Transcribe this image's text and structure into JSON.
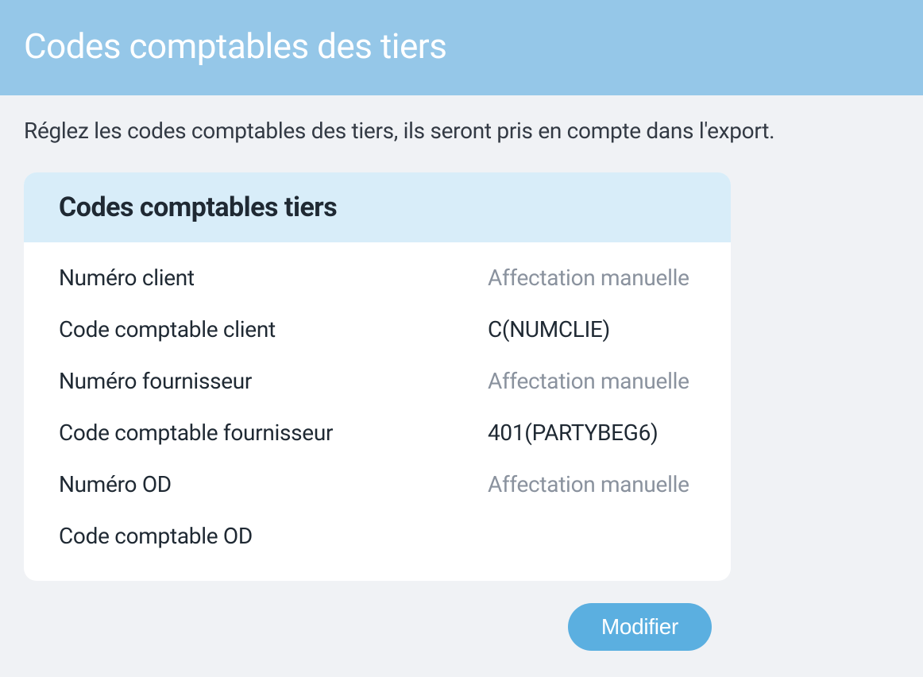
{
  "header": {
    "title": "Codes comptables des tiers"
  },
  "description": "Réglez les codes comptables des tiers, ils seront pris en compte dans l'export.",
  "card": {
    "title": "Codes comptables tiers",
    "rows": [
      {
        "label": "Numéro client",
        "value": "Affectation manuelle",
        "muted": true
      },
      {
        "label": "Code comptable client",
        "value": "C(NUMCLIE)",
        "muted": false
      },
      {
        "label": "Numéro fournisseur",
        "value": "Affectation manuelle",
        "muted": true
      },
      {
        "label": "Code comptable fournisseur",
        "value": "401(PARTYBEG6)",
        "muted": false
      },
      {
        "label": "Numéro OD",
        "value": "Affectation manuelle",
        "muted": true
      },
      {
        "label": "Code comptable OD",
        "value": "",
        "muted": false
      }
    ]
  },
  "buttons": {
    "modify": "Modifier"
  },
  "colors": {
    "header_bg": "#95c7e8",
    "page_bg": "#f0f2f5",
    "card_header_bg": "#d8edf9",
    "card_bg": "#ffffff",
    "text_primary": "#1f2933",
    "text_muted": "#8a929e",
    "button_bg": "#5bafe0",
    "button_text": "#ffffff"
  }
}
